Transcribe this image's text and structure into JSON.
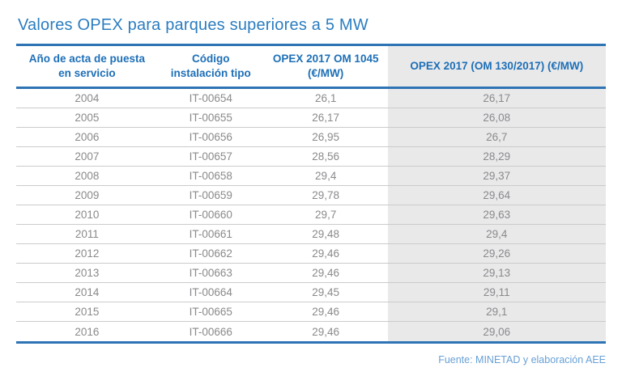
{
  "title": "Valores OPEX para parques superiores a 5 MW",
  "table": {
    "headers": [
      "Año de acta de puesta\nen servicio",
      "Código\ninstalación tipo",
      "OPEX 2017 OM 1045\n(€/MW)",
      "OPEX 2017 (OM 130/2017) (€/MW)"
    ],
    "rows": [
      [
        "2004",
        "IT-00654",
        "26,1",
        "26,17"
      ],
      [
        "2005",
        "IT-00655",
        "26,17",
        "26,08"
      ],
      [
        "2006",
        "IT-00656",
        "26,95",
        "26,7"
      ],
      [
        "2007",
        "IT-00657",
        "28,56",
        "28,29"
      ],
      [
        "2008",
        "IT-00658",
        "29,4",
        "29,37"
      ],
      [
        "2009",
        "IT-00659",
        "29,78",
        "29,64"
      ],
      [
        "2010",
        "IT-00660",
        "29,7",
        "29,63"
      ],
      [
        "2011",
        "IT-00661",
        "29,48",
        "29,4"
      ],
      [
        "2012",
        "IT-00662",
        "29,46",
        "29,26"
      ],
      [
        "2013",
        "IT-00663",
        "29,46",
        "29,13"
      ],
      [
        "2014",
        "IT-00664",
        "29,45",
        "29,11"
      ],
      [
        "2015",
        "IT-00665",
        "29,46",
        "29,1"
      ],
      [
        "2016",
        "IT-00666",
        "29,46",
        "29,06"
      ]
    ]
  },
  "footer": {
    "source": "Fuente: MINETAD y elaboración AEE"
  },
  "colors": {
    "accent_blue": "#2e74b4",
    "title_blue": "#2b7dc0",
    "header_text_blue": "#1d6fb7",
    "data_text_gray": "#8a8a8d",
    "panel_gray": "#e9e9ea",
    "separator_gray": "#cbcbcb",
    "footer_blue": "#68a0d6"
  },
  "chart_data": {
    "type": "table",
    "title": "Valores OPEX para parques superiores a 5 MW",
    "columns": [
      "Año de acta de puesta en servicio",
      "Código instalación tipo",
      "OPEX 2017 OM 1045 (€/MW)",
      "OPEX 2017 (OM 130/2017) (€/MW)"
    ],
    "categories": [
      "2004",
      "2005",
      "2006",
      "2007",
      "2008",
      "2009",
      "2010",
      "2011",
      "2012",
      "2013",
      "2014",
      "2015",
      "2016"
    ],
    "codes": [
      "IT-00654",
      "IT-00655",
      "IT-00656",
      "IT-00657",
      "IT-00658",
      "IT-00659",
      "IT-00660",
      "IT-00661",
      "IT-00662",
      "IT-00663",
      "IT-00664",
      "IT-00665",
      "IT-00666"
    ],
    "series": [
      {
        "name": "OPEX 2017 OM 1045 (€/MW)",
        "values": [
          26.1,
          26.17,
          26.95,
          28.56,
          29.4,
          29.78,
          29.7,
          29.48,
          29.46,
          29.46,
          29.45,
          29.46,
          29.46
        ]
      },
      {
        "name": "OPEX 2017 (OM 130/2017) (€/MW)",
        "values": [
          26.17,
          26.08,
          26.7,
          28.29,
          29.37,
          29.64,
          29.63,
          29.4,
          29.26,
          29.13,
          29.11,
          29.1,
          29.06
        ]
      }
    ],
    "source": "Fuente: MINETAD y elaboración AEE"
  }
}
